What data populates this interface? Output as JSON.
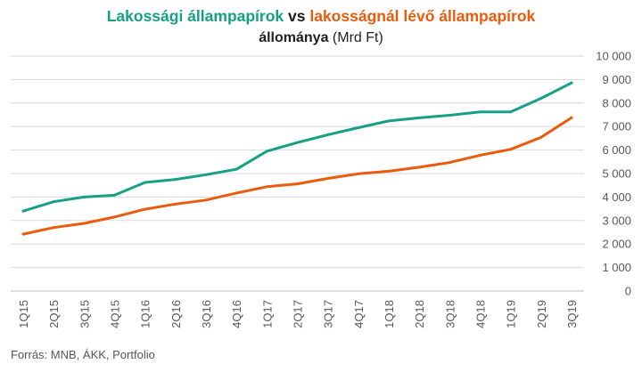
{
  "title": {
    "series_a_name": "Lakossági állampapírok",
    "connector": " vs ",
    "series_b_name": "lakosságnál lévő állampapírok",
    "line2_bold": "állománya",
    "line2_unit": " (Mrd Ft)"
  },
  "source": "Forrás: MNB, ÁKK, Portfolio",
  "colors": {
    "series_a": "#16a085",
    "series_b": "#ea5b0c",
    "grid": "#d9d9d9",
    "tick": "#595959"
  },
  "chart_data": {
    "type": "line",
    "categories": [
      "1Q15",
      "2Q15",
      "3Q15",
      "4Q15",
      "1Q16",
      "2Q16",
      "3Q16",
      "4Q16",
      "1Q17",
      "2Q17",
      "3Q17",
      "4Q17",
      "1Q18",
      "2Q18",
      "3Q18",
      "4Q18",
      "1Q19",
      "2Q19",
      "3Q19"
    ],
    "y_ticks": [
      0,
      1000,
      2000,
      3000,
      4000,
      5000,
      6000,
      7000,
      8000,
      9000,
      10000
    ],
    "y_tick_labels": [
      "0",
      "1 000",
      "2 000",
      "3 000",
      "4 000",
      "5 000",
      "6 000",
      "7 000",
      "8 000",
      "9 000",
      "10 000"
    ],
    "ylim": [
      0,
      10000
    ],
    "y_axis_position": "right",
    "grid": true,
    "legend": "none",
    "series": [
      {
        "name": "Lakossági állampapírok",
        "values": [
          3400,
          3800,
          4000,
          4080,
          4620,
          4750,
          4950,
          5180,
          5950,
          6320,
          6650,
          6950,
          7240,
          7370,
          7480,
          7620,
          7620,
          8200,
          8860
        ]
      },
      {
        "name": "lakosságnál lévő állampapírok",
        "values": [
          2420,
          2700,
          2880,
          3150,
          3480,
          3700,
          3870,
          4170,
          4440,
          4560,
          4790,
          4990,
          5100,
          5270,
          5470,
          5780,
          6030,
          6540,
          7380
        ]
      }
    ]
  }
}
